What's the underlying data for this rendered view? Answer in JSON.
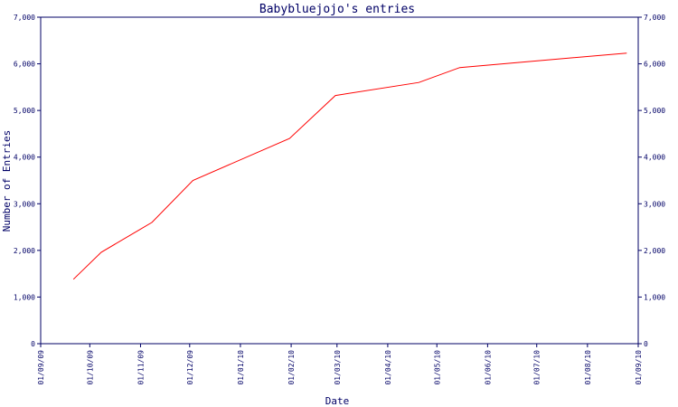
{
  "chart_data": {
    "type": "line",
    "title": "Babybluejojo's entries",
    "xlabel": "Date",
    "ylabel": "Number of Entries",
    "ylim": [
      0,
      7000
    ],
    "yticks": [
      "0",
      "1,000",
      "2,000",
      "3,000",
      "4,000",
      "5,000",
      "6,000",
      "7,000"
    ],
    "xticks": [
      "01/09/09",
      "01/10/09",
      "01/11/09",
      "01/12/09",
      "01/01/10",
      "01/02/10",
      "01/03/10",
      "01/04/10",
      "01/05/10",
      "01/06/10",
      "01/07/10",
      "01/08/10",
      "01/09/10"
    ],
    "grid": false,
    "series": [
      {
        "color": "#ff0000",
        "x": [
          "2009-09-21",
          "2009-10-08",
          "2009-11-08",
          "2009-12-03",
          "2010-01-31",
          "2010-02-28",
          "2010-04-20",
          "2010-05-15",
          "2010-08-25"
        ],
        "values": [
          1380,
          1960,
          2600,
          3500,
          4400,
          5320,
          5600,
          5920,
          6230
        ]
      }
    ],
    "colors": {
      "axis": "#000066",
      "text": "#000066",
      "line": "#ff0000"
    }
  }
}
